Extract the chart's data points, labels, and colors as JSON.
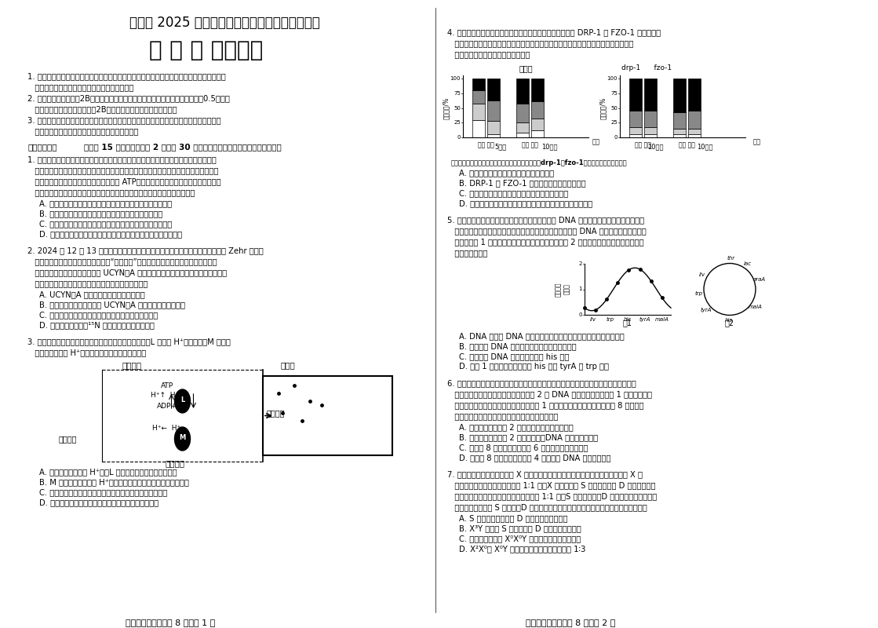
{
  "title1": "聊城市 2025 年普通高中学业水平等级考试模拟卷",
  "title2": "生 物 试 题（一）",
  "background_color": "#ffffff",
  "text_color": "#000000",
  "footer_left": "生物试题（一）（共 8 页）第 1 页",
  "footer_right": "生物试题（一）（共 8 页）第 2 页"
}
